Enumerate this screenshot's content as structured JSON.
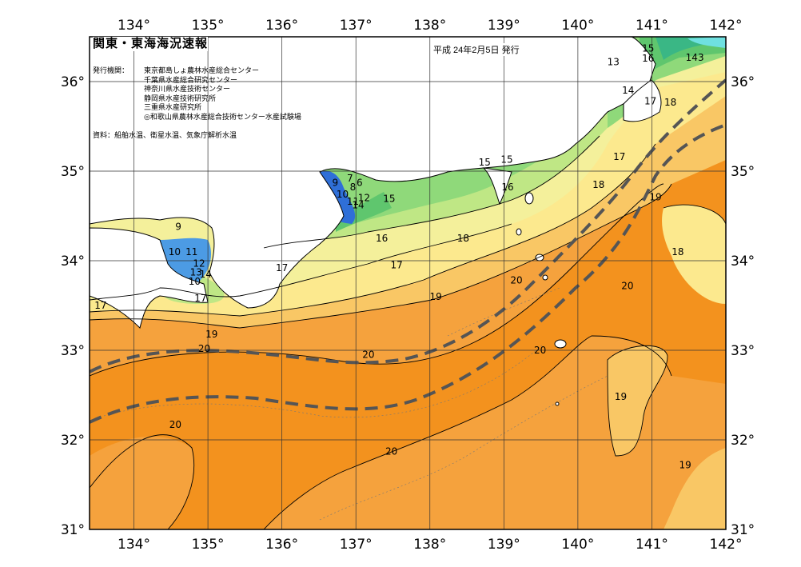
{
  "header": {
    "title": "関東・東海海況速報",
    "date": "平成 24年2月5日 発行"
  },
  "issuers": {
    "label": "発行機関：",
    "list": [
      "東京都島しょ農林水産総合センター",
      "千葉県水産総合研究センター",
      "神奈川県水産技術センター",
      "静岡県水産技術研究所",
      "三重県水産研究所",
      "◎和歌山県農林水産総合技術センター水産試験場"
    ]
  },
  "sources": "資料：船舶水温、衛星水温、気象庁解析水温",
  "axes": {
    "lon_ticks": [
      "134°",
      "135°",
      "136°",
      "137°",
      "138°",
      "139°",
      "140°",
      "141°",
      "142°"
    ],
    "lat_ticks": [
      "36°",
      "35°",
      "34°",
      "33°",
      "32°",
      "31°"
    ],
    "lon_range": [
      133.4,
      142.0
    ],
    "lat_range": [
      31.0,
      36.5
    ]
  },
  "contour_labels": [
    {
      "t": "9",
      "lon": 134.6,
      "lat": 34.38
    },
    {
      "t": "10",
      "lon": 134.55,
      "lat": 34.1
    },
    {
      "t": "11",
      "lon": 134.78,
      "lat": 34.1
    },
    {
      "t": "12",
      "lon": 134.88,
      "lat": 33.97
    },
    {
      "t": "13",
      "lon": 134.84,
      "lat": 33.87
    },
    {
      "t": "14",
      "lon": 134.97,
      "lat": 33.85
    },
    {
      "t": "10",
      "lon": 134.82,
      "lat": 33.77
    },
    {
      "t": "17",
      "lon": 134.9,
      "lat": 33.58
    },
    {
      "t": "17",
      "lon": 133.55,
      "lat": 33.5
    },
    {
      "t": "19",
      "lon": 135.05,
      "lat": 33.18
    },
    {
      "t": "20",
      "lon": 134.95,
      "lat": 33.02
    },
    {
      "t": "20",
      "lon": 134.56,
      "lat": 32.17
    },
    {
      "t": "17",
      "lon": 136.0,
      "lat": 33.92
    },
    {
      "t": "9",
      "lon": 136.72,
      "lat": 34.87
    },
    {
      "t": "7",
      "lon": 136.92,
      "lat": 34.92
    },
    {
      "t": "6",
      "lon": 137.05,
      "lat": 34.87
    },
    {
      "t": "8",
      "lon": 136.96,
      "lat": 34.82
    },
    {
      "t": "10",
      "lon": 136.82,
      "lat": 34.74
    },
    {
      "t": "11",
      "lon": 136.96,
      "lat": 34.66
    },
    {
      "t": "12",
      "lon": 137.11,
      "lat": 34.7
    },
    {
      "t": "14",
      "lon": 137.03,
      "lat": 34.62
    },
    {
      "t": "15",
      "lon": 137.45,
      "lat": 34.69
    },
    {
      "t": "16",
      "lon": 137.35,
      "lat": 34.25
    },
    {
      "t": "17",
      "lon": 137.55,
      "lat": 33.95
    },
    {
      "t": "18",
      "lon": 138.45,
      "lat": 34.25
    },
    {
      "t": "19",
      "lon": 138.08,
      "lat": 33.6
    },
    {
      "t": "20",
      "lon": 137.17,
      "lat": 32.95
    },
    {
      "t": "20",
      "lon": 137.48,
      "lat": 31.87
    },
    {
      "t": "15",
      "lon": 138.74,
      "lat": 35.1
    },
    {
      "t": "15",
      "lon": 139.04,
      "lat": 35.13
    },
    {
      "t": "16",
      "lon": 139.05,
      "lat": 34.82
    },
    {
      "t": "20",
      "lon": 139.17,
      "lat": 33.78
    },
    {
      "t": "20",
      "lon": 139.49,
      "lat": 33.0
    },
    {
      "t": "17",
      "lon": 140.56,
      "lat": 35.16
    },
    {
      "t": "18",
      "lon": 140.28,
      "lat": 34.85
    },
    {
      "t": "19",
      "lon": 141.05,
      "lat": 34.71
    },
    {
      "t": "18",
      "lon": 141.35,
      "lat": 34.1
    },
    {
      "t": "20",
      "lon": 140.67,
      "lat": 33.72
    },
    {
      "t": "19",
      "lon": 140.58,
      "lat": 32.48
    },
    {
      "t": "19",
      "lon": 141.45,
      "lat": 31.72
    },
    {
      "t": "13",
      "lon": 140.48,
      "lat": 36.22
    },
    {
      "t": "15",
      "lon": 140.95,
      "lat": 36.37
    },
    {
      "t": "16",
      "lon": 140.95,
      "lat": 36.26
    },
    {
      "t": "143",
      "lon": 141.58,
      "lat": 36.27
    },
    {
      "t": "14",
      "lon": 140.68,
      "lat": 35.9
    },
    {
      "t": "17",
      "lon": 140.98,
      "lat": 35.78
    },
    {
      "t": "18",
      "lon": 141.25,
      "lat": 35.77
    }
  ],
  "colors": {
    "t20plus": "#F3921E",
    "t20": "#F5A23D",
    "t19": "#F9C765",
    "t18": "#FCE98E",
    "t17": "#F4F09B",
    "t16": "#BFE785",
    "t15": "#8FD97A",
    "t14": "#5FC66E",
    "t13": "#3AB785",
    "cold": "#4C9BE4",
    "deep_cold": "#2F6FD8",
    "land": "#FFFFFF",
    "kuroshio_axis": "#555555"
  }
}
